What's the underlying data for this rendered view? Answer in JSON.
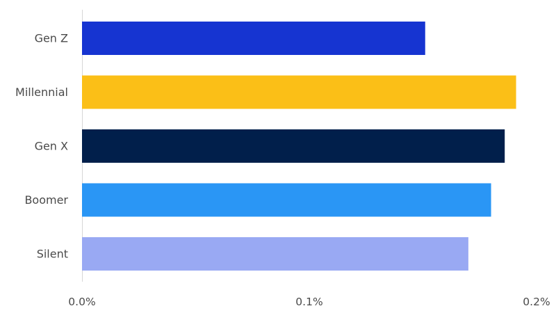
{
  "chart_data": {
    "type": "bar",
    "orientation": "horizontal",
    "categories": [
      "Gen Z",
      "Millennial",
      "Gen X",
      "Boomer",
      "Silent"
    ],
    "values": [
      0.151,
      0.191,
      0.186,
      0.18,
      0.17
    ],
    "colors": [
      "#1634d1",
      "#fbbf17",
      "#011f4b",
      "#2a96f5",
      "#99a9f3"
    ],
    "xlim": [
      0,
      0.2
    ],
    "xticks": [
      0,
      0.1,
      0.2
    ],
    "xtick_labels": [
      "0.0%",
      "0.1%",
      "0.2%"
    ],
    "title": "",
    "xlabel": "",
    "ylabel": "",
    "grid": false,
    "legend": false
  }
}
